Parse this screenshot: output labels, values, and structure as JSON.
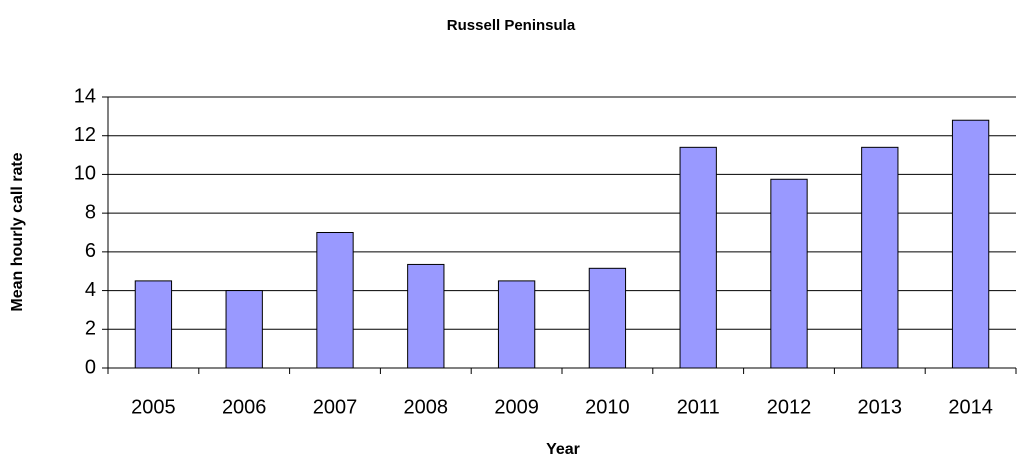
{
  "chart_data": {
    "type": "bar",
    "title": "Russell Peninsula",
    "x_label": "Year",
    "y_label": "Mean hourly call rate",
    "categories": [
      "2005",
      "2006",
      "2007",
      "2008",
      "2009",
      "2010",
      "2011",
      "2012",
      "2013",
      "2014"
    ],
    "values": [
      4.5,
      4.0,
      7.0,
      5.35,
      4.5,
      5.15,
      11.4,
      9.75,
      11.4,
      12.8
    ],
    "color": "#9999ff",
    "ylim": [
      0,
      14
    ],
    "yticks": [
      0,
      2,
      4,
      6,
      8,
      10,
      12,
      14
    ],
    "grid": true
  }
}
